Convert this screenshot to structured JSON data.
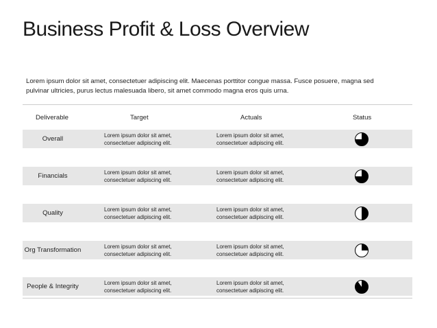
{
  "header": {
    "title": "Business Profit & Loss Overview",
    "intro": "Lorem ipsum dolor sit amet, consectetuer adipiscing elit. Maecenas porttitor congue massa. Fusce posuere, magna sed pulvinar ultricies, purus lectus malesuada libero, sit amet commodo magna eros quis urna."
  },
  "table": {
    "columns": [
      "Deliverable",
      "Target",
      "Actuals",
      "Status"
    ],
    "rows": [
      {
        "deliverable": "Overall",
        "target": "Lorem ipsum dolor sit amet, consectetuer adipiscing elit.",
        "actuals": "Lorem ipsum dolor sit amet, consectetuer adipiscing elit.",
        "status": 75
      },
      {
        "deliverable": "Financials",
        "target": "Lorem ipsum dolor sit amet, consectetuer adipiscing elit.",
        "actuals": "Lorem ipsum dolor sit amet, consectetuer adipiscing elit.",
        "status": 75
      },
      {
        "deliverable": "Quality",
        "target": "Lorem ipsum dolor sit amet, consectetuer adipiscing elit.",
        "actuals": "Lorem ipsum dolor sit amet, consectetuer adipiscing elit.",
        "status": 50
      },
      {
        "deliverable": "Org Transformation",
        "target": "Lorem ipsum dolor sit amet, consectetuer adipiscing elit.",
        "actuals": "Lorem ipsum dolor sit amet, consectetuer adipiscing elit.",
        "status": 25
      },
      {
        "deliverable": "People & Integrity",
        "target": "Lorem ipsum dolor sit amet, consectetuer adipiscing elit.",
        "actuals": "Lorem ipsum dolor sit amet, consectetuer adipiscing elit.",
        "status": 90
      }
    ]
  }
}
